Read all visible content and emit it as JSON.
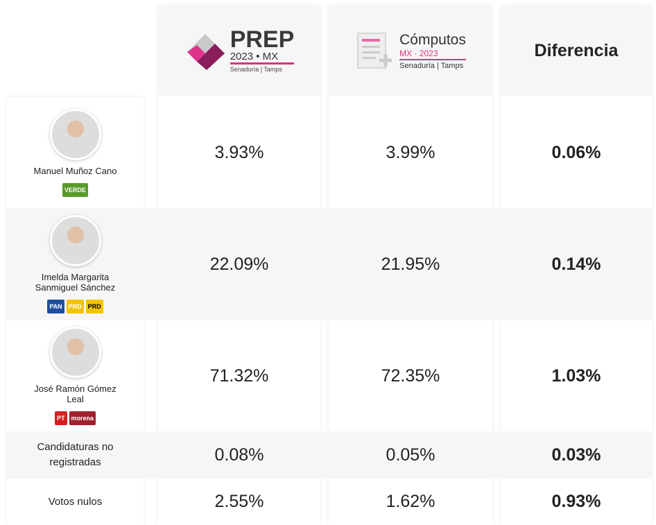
{
  "header": {
    "prep": {
      "title": "PREP",
      "subtitle": "2023 • MX",
      "caption": "Senaduría | Tamps"
    },
    "computos": {
      "title": "Cómputos",
      "subtitle": "MX · 2023",
      "caption": "Senaduría | Tamps"
    },
    "diferencia": "Diferencia"
  },
  "rows": [
    {
      "name": "Manuel Muñoz Cano",
      "parties": [
        "VERDE"
      ],
      "prep": "3.93%",
      "computos": "3.99%",
      "diferencia": "0.06%"
    },
    {
      "name": "Imelda Margarita Sanmiguel Sánchez",
      "parties": [
        "PAN",
        "PRD",
        "PRD"
      ],
      "prep": "22.09%",
      "computos": "21.95%",
      "diferencia": "0.14%"
    },
    {
      "name": "José Ramón Gómez Leal",
      "parties": [
        "PT",
        "morena"
      ],
      "prep": "71.32%",
      "computos": "72.35%",
      "diferencia": "1.03%"
    },
    {
      "name": "Candidaturas no registradas",
      "parties": [],
      "prep": "0.08%",
      "computos": "0.05%",
      "diferencia": "0.03%"
    },
    {
      "name": "Votos nulos",
      "parties": [],
      "prep": "2.55%",
      "computos": "1.62%",
      "diferencia": "0.93%"
    }
  ]
}
